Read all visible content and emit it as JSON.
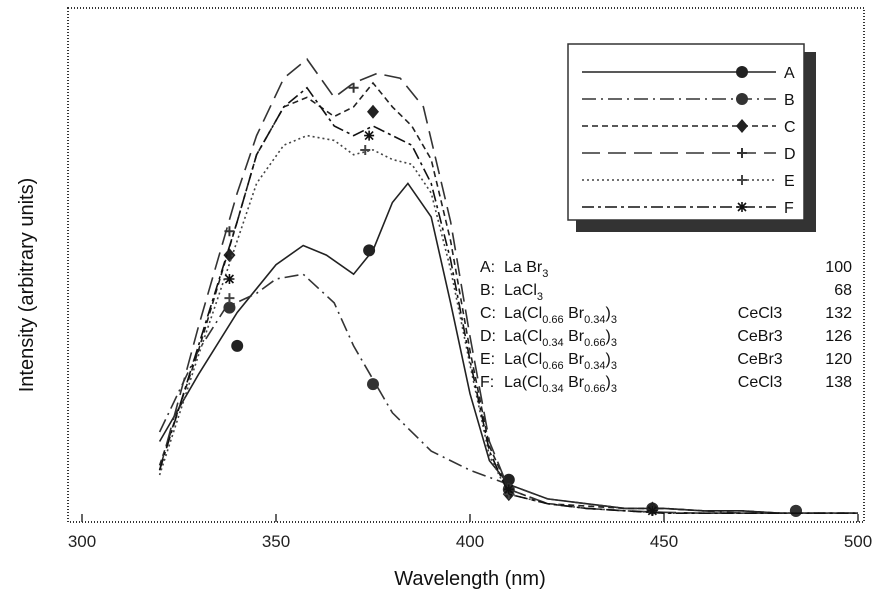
{
  "chart_data": {
    "type": "line",
    "title": "",
    "xlabel": "Wavelength (nm)",
    "ylabel": "Intensity (arbitrary units)",
    "xlim": [
      300,
      500
    ],
    "ylim": [
      0,
      1.0
    ],
    "x_ticks": [
      "300",
      "350",
      "400",
      "450",
      "500"
    ],
    "grid": false,
    "legend_position": "top-right",
    "series": [
      {
        "name": "A",
        "color": "#222222",
        "dash": "",
        "marker": "circle",
        "x": [
          320,
          330,
          340,
          350,
          357,
          363,
          370,
          375,
          380,
          384,
          390,
          395,
          400,
          405,
          410,
          420,
          430,
          440,
          450,
          460,
          470,
          480,
          490,
          500
        ],
        "y": [
          0.16,
          0.3,
          0.43,
          0.53,
          0.57,
          0.55,
          0.51,
          0.56,
          0.66,
          0.7,
          0.63,
          0.45,
          0.26,
          0.12,
          0.07,
          0.04,
          0.03,
          0.02,
          0.02,
          0.015,
          0.015,
          0.01,
          0.01,
          0.01
        ],
        "marker_x": [
          340,
          374,
          410,
          447,
          484
        ],
        "marker_y": [
          0.36,
          0.56,
          0.08,
          0.02,
          0.015
        ]
      },
      {
        "name": "B",
        "color": "#333333",
        "dash": "14,5,2,5",
        "marker": "circle",
        "x": [
          320,
          330,
          337,
          345,
          350,
          357,
          365,
          370,
          375,
          380,
          390,
          400,
          410,
          420,
          430,
          440,
          450,
          460,
          470,
          480,
          490,
          500
        ],
        "y": [
          0.18,
          0.35,
          0.44,
          0.47,
          0.5,
          0.51,
          0.45,
          0.36,
          0.29,
          0.22,
          0.14,
          0.1,
          0.07,
          0.04,
          0.03,
          0.02,
          0.02,
          0.015,
          0.01,
          0.01,
          0.01,
          0.01
        ],
        "marker_x": [
          338,
          375,
          410,
          447,
          484
        ],
        "marker_y": [
          0.44,
          0.28,
          0.06,
          0.02,
          0.015
        ]
      },
      {
        "name": "C",
        "color": "#222222",
        "dash": "6,4",
        "marker": "diamond",
        "x": [
          320,
          330,
          340,
          345,
          352,
          358,
          365,
          370,
          375,
          380,
          385,
          390,
          395,
          400,
          405,
          410,
          420,
          430,
          440,
          450,
          460,
          470,
          480,
          490,
          500
        ],
        "y": [
          0.11,
          0.35,
          0.62,
          0.76,
          0.86,
          0.88,
          0.84,
          0.86,
          0.91,
          0.86,
          0.82,
          0.75,
          0.58,
          0.35,
          0.15,
          0.06,
          0.03,
          0.025,
          0.02,
          0.02,
          0.015,
          0.015,
          0.01,
          0.01,
          0.01
        ],
        "marker_x": [
          338,
          375,
          410,
          447
        ],
        "marker_y": [
          0.55,
          0.85,
          0.05,
          0.02
        ]
      },
      {
        "name": "D",
        "color": "#333333",
        "dash": "18,8",
        "marker": "plus",
        "x": [
          320,
          330,
          340,
          345,
          352,
          358,
          365,
          370,
          376,
          382,
          388,
          395,
          400,
          405,
          410,
          420,
          430,
          440,
          450,
          460,
          470,
          480,
          490,
          500
        ],
        "y": [
          0.1,
          0.4,
          0.68,
          0.8,
          0.92,
          0.96,
          0.88,
          0.91,
          0.93,
          0.92,
          0.86,
          0.62,
          0.38,
          0.16,
          0.06,
          0.03,
          0.02,
          0.015,
          0.012,
          0.01,
          0.01,
          0.01,
          0.01,
          0.01
        ],
        "marker_x": [
          338,
          370,
          410,
          447
        ],
        "marker_y": [
          0.6,
          0.9,
          0.06,
          0.015
        ]
      },
      {
        "name": "E",
        "color": "#444444",
        "dash": "2,3",
        "marker": "plus",
        "x": [
          320,
          330,
          340,
          345,
          352,
          358,
          365,
          370,
          375,
          380,
          385,
          390,
          395,
          400,
          405,
          410,
          420,
          430,
          440,
          450,
          460,
          470,
          480,
          490,
          500
        ],
        "y": [
          0.09,
          0.34,
          0.58,
          0.7,
          0.78,
          0.8,
          0.79,
          0.76,
          0.77,
          0.75,
          0.74,
          0.68,
          0.52,
          0.32,
          0.13,
          0.05,
          0.03,
          0.02,
          0.015,
          0.01,
          0.01,
          0.01,
          0.01,
          0.01,
          0.01
        ],
        "marker_x": [
          338,
          373,
          410,
          447
        ],
        "marker_y": [
          0.46,
          0.77,
          0.05,
          0.015
        ]
      },
      {
        "name": "F",
        "color": "#111111",
        "dash": "12,4,3,4",
        "marker": "star",
        "x": [
          320,
          330,
          340,
          345,
          352,
          358,
          365,
          370,
          375,
          380,
          385,
          390,
          395,
          400,
          405,
          410,
          420,
          430,
          440,
          450,
          460,
          470,
          480,
          490,
          500
        ],
        "y": [
          0.1,
          0.36,
          0.62,
          0.76,
          0.86,
          0.9,
          0.82,
          0.8,
          0.82,
          0.8,
          0.78,
          0.7,
          0.54,
          0.33,
          0.14,
          0.05,
          0.03,
          0.02,
          0.015,
          0.01,
          0.01,
          0.01,
          0.01,
          0.01,
          0.01
        ],
        "marker_x": [
          338,
          374,
          410,
          447
        ],
        "marker_y": [
          0.5,
          0.8,
          0.06,
          0.015
        ]
      }
    ],
    "legend": [
      "A",
      "B",
      "C",
      "D",
      "E",
      "F"
    ],
    "compositions": [
      {
        "label": "A:",
        "formula": [
          [
            "La Br",
            ""
          ],
          [
            "3",
            "sub"
          ]
        ],
        "dopant": "",
        "value": "100"
      },
      {
        "label": "B:",
        "formula": [
          [
            "LaCl",
            ""
          ],
          [
            "3",
            "sub"
          ]
        ],
        "dopant": "",
        "value": "68"
      },
      {
        "label": "C:",
        "formula": [
          [
            "La(Cl",
            ""
          ],
          [
            "0.66",
            "sub"
          ],
          [
            " Br",
            ""
          ],
          [
            "0.34",
            "sub"
          ],
          [
            ")",
            ""
          ],
          [
            "3",
            "sub"
          ]
        ],
        "dopant": "CeCl3",
        "value": "132"
      },
      {
        "label": "D:",
        "formula": [
          [
            "La(Cl",
            ""
          ],
          [
            "0.34",
            "sub"
          ],
          [
            " Br",
            ""
          ],
          [
            "0.66",
            "sub"
          ],
          [
            ")",
            ""
          ],
          [
            "3",
            "sub"
          ]
        ],
        "dopant": "CeBr3",
        "value": "126"
      },
      {
        "label": "E:",
        "formula": [
          [
            "La(Cl",
            ""
          ],
          [
            "0.66",
            "sub"
          ],
          [
            " Br",
            ""
          ],
          [
            "0.34",
            "sub"
          ],
          [
            ")",
            ""
          ],
          [
            "3",
            "sub"
          ]
        ],
        "dopant": "CeBr3",
        "value": "120"
      },
      {
        "label": "F:",
        "formula": [
          [
            "La(Cl",
            ""
          ],
          [
            "0.34",
            "sub"
          ],
          [
            " Br",
            ""
          ],
          [
            "0.66",
            "sub"
          ],
          [
            ")",
            ""
          ],
          [
            "3",
            "sub"
          ]
        ],
        "dopant": "CeCl3",
        "value": "138"
      }
    ]
  }
}
